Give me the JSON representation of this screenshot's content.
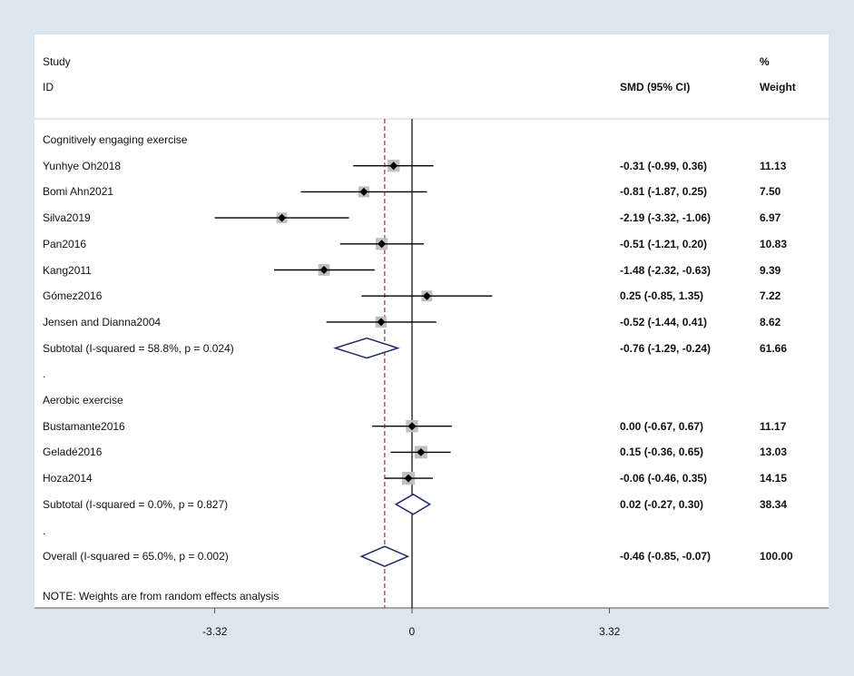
{
  "chart_data": {
    "type": "forest",
    "x_ticks": [
      -3.32,
      0,
      3.32
    ],
    "x_tick_labels": [
      "-3.32",
      "0",
      "3.32"
    ],
    "overall_line": -0.46,
    "null_line": 0,
    "headers": {
      "study": "Study",
      "id": "ID",
      "smd": "SMD (95% CI)",
      "pct": "%",
      "weight": "Weight"
    },
    "rows": [
      {
        "kind": "group",
        "label": "Cognitively engaging exercise"
      },
      {
        "kind": "study",
        "label": "Yunhye Oh2018",
        "est": -0.31,
        "lo": -0.99,
        "hi": 0.36,
        "ci_text": "-0.31 (-0.99, 0.36)",
        "weight": "11.13"
      },
      {
        "kind": "study",
        "label": "Bomi Ahn2021",
        "est": -0.81,
        "lo": -1.87,
        "hi": 0.25,
        "ci_text": "-0.81 (-1.87, 0.25)",
        "weight": "7.50"
      },
      {
        "kind": "study",
        "label": "Silva2019",
        "est": -2.19,
        "lo": -3.32,
        "hi": -1.06,
        "ci_text": "-2.19 (-3.32, -1.06)",
        "weight": "6.97"
      },
      {
        "kind": "study",
        "label": "Pan2016",
        "est": -0.51,
        "lo": -1.21,
        "hi": 0.2,
        "ci_text": "-0.51 (-1.21, 0.20)",
        "weight": "10.83"
      },
      {
        "kind": "study",
        "label": "Kang2011",
        "est": -1.48,
        "lo": -2.32,
        "hi": -0.63,
        "ci_text": "-1.48 (-2.32, -0.63)",
        "weight": "9.39"
      },
      {
        "kind": "study",
        "label": "Gómez2016",
        "est": 0.25,
        "lo": -0.85,
        "hi": 1.35,
        "ci_text": "0.25 (-0.85, 1.35)",
        "weight": "7.22"
      },
      {
        "kind": "study",
        "label": "Jensen and Dianna2004",
        "est": -0.52,
        "lo": -1.44,
        "hi": 0.41,
        "ci_text": "-0.52 (-1.44, 0.41)",
        "weight": "8.62"
      },
      {
        "kind": "subtotal",
        "label": "Subtotal  (I-squared = 58.8%, p = 0.024)",
        "est": -0.76,
        "lo": -1.29,
        "hi": -0.24,
        "ci_text": "-0.76 (-1.29, -0.24)",
        "weight": "61.66"
      },
      {
        "kind": "dot",
        "label": "."
      },
      {
        "kind": "group",
        "label": "Aerobic exercise"
      },
      {
        "kind": "study",
        "label": "Bustamante2016",
        "est": 0.0,
        "lo": -0.67,
        "hi": 0.67,
        "ci_text": "0.00 (-0.67, 0.67)",
        "weight": "11.17"
      },
      {
        "kind": "study",
        "label": "Geladé2016",
        "est": 0.15,
        "lo": -0.36,
        "hi": 0.65,
        "ci_text": "0.15 (-0.36, 0.65)",
        "weight": "13.03"
      },
      {
        "kind": "study",
        "label": "Hoza2014",
        "est": -0.06,
        "lo": -0.46,
        "hi": 0.35,
        "ci_text": "-0.06 (-0.46, 0.35)",
        "weight": "14.15"
      },
      {
        "kind": "subtotal",
        "label": "Subtotal  (I-squared = 0.0%, p = 0.827)",
        "est": 0.02,
        "lo": -0.27,
        "hi": 0.3,
        "ci_text": "0.02 (-0.27, 0.30)",
        "weight": "38.34"
      },
      {
        "kind": "dot",
        "label": "."
      },
      {
        "kind": "overall",
        "label": "Overall  (I-squared = 65.0%, p = 0.002)",
        "est": -0.46,
        "lo": -0.85,
        "hi": -0.07,
        "ci_text": "-0.46 (-0.85, -0.07)",
        "weight": "100.00"
      }
    ],
    "note": "NOTE: Weights are from random effects analysis",
    "colors": {
      "diamond": "#1f2a6b",
      "overall_line": "#b03030",
      "ci_line": "#000000",
      "weight_box": "#c0c0c0",
      "point": "#000000"
    }
  }
}
